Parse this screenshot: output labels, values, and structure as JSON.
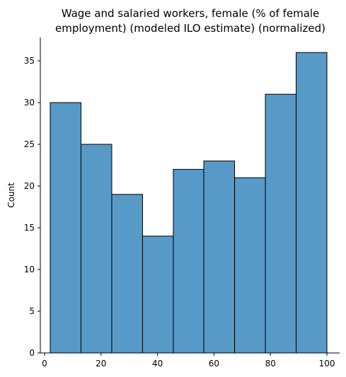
{
  "chart_data": {
    "type": "bar",
    "title": "Wage and salaried workers, female (% of female employment) (modeled ILO estimate) (normalized)",
    "title_lines": [
      "Wage and salaried workers, female (% of female",
      "employment) (modeled ILO estimate) (normalized)"
    ],
    "xlabel": "",
    "ylabel": "Count",
    "bin_edges": [
      2,
      12.9,
      23.8,
      34.7,
      45.6,
      56.4,
      67.3,
      78.2,
      89.1,
      100
    ],
    "values": [
      30,
      25,
      19,
      14,
      22,
      23,
      21,
      31,
      36
    ],
    "xlim": [
      -1.5,
      104.5
    ],
    "ylim": [
      0,
      37.8
    ],
    "xticks": [
      0,
      20,
      40,
      60,
      80,
      100
    ],
    "yticks": [
      0,
      5,
      10,
      15,
      20,
      25,
      30,
      35
    ],
    "bar_color": "#5799c7",
    "edge_color": "#000000",
    "grid": false
  }
}
